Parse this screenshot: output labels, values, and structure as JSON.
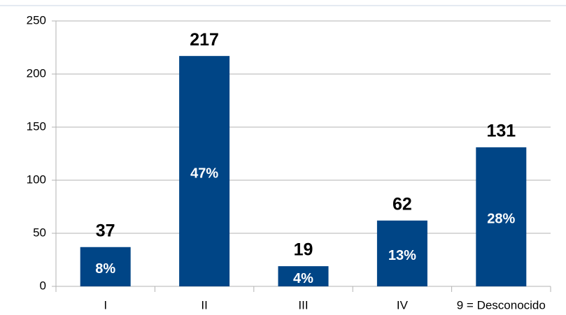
{
  "chart_data": {
    "type": "bar",
    "categories": [
      "I",
      "II",
      "III",
      "IV",
      "9 = Desconocido"
    ],
    "values": [
      37,
      217,
      19,
      62,
      131
    ],
    "shares": [
      8,
      47,
      4,
      13,
      28
    ],
    "share_labels": [
      "8%",
      "47%",
      "4%",
      "13%",
      "28%"
    ],
    "color": "#004586",
    "ylim": [
      0,
      250
    ],
    "yticks": [
      0,
      50,
      100,
      150,
      200,
      250
    ],
    "grid": true
  }
}
